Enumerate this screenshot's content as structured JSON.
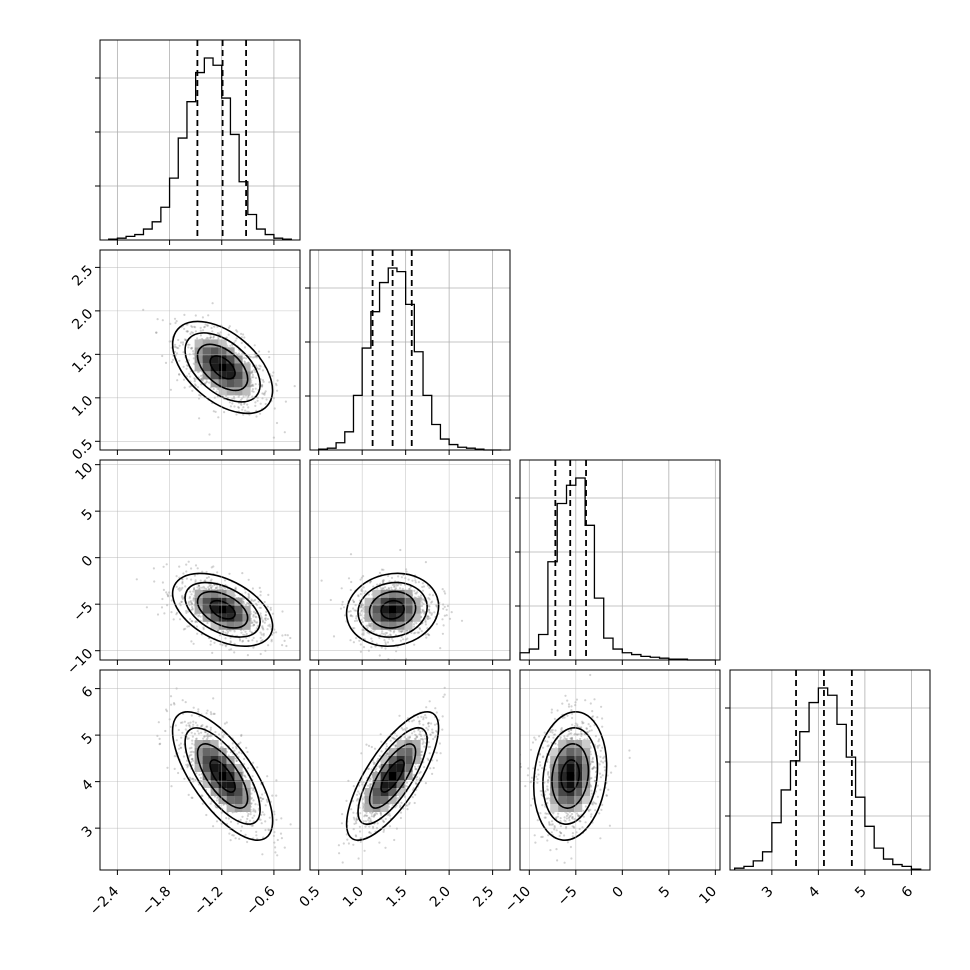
{
  "colors": {
    "line": "#000000",
    "grid": "#b0b0b0",
    "points": "#7f7f7f",
    "background": "#ffffff"
  },
  "chart_data": {
    "type": "corner",
    "grid": true,
    "parameters": [
      {
        "id": "p0",
        "range": [
          -2.6,
          -0.3
        ],
        "ticks": [
          -2.4,
          -1.8,
          -1.2,
          -0.6
        ],
        "tick_labels": [
          "−2.4",
          "−1.8",
          "−1.2",
          "−0.6"
        ],
        "quantiles": [
          -1.48,
          -1.19,
          -0.92
        ],
        "median": -1.19,
        "std": 0.25
      },
      {
        "id": "p1",
        "range": [
          0.4,
          2.7
        ],
        "ticks": [
          0.5,
          1.0,
          1.5,
          2.0,
          2.5
        ],
        "tick_labels": [
          "0.5",
          "1.0",
          "1.5",
          "2.0",
          "2.5"
        ],
        "quantiles": [
          1.12,
          1.35,
          1.57
        ],
        "median": 1.35,
        "std": 0.23
      },
      {
        "id": "p2",
        "range": [
          -11.0,
          10.5
        ],
        "ticks": [
          -10,
          -5,
          0,
          5,
          10
        ],
        "tick_labels": [
          "−10",
          "−5",
          "0",
          "5",
          "10"
        ],
        "quantiles": [
          -7.2,
          -5.6,
          -3.9
        ],
        "median": -5.6,
        "std": 1.7
      },
      {
        "id": "p3",
        "range": [
          2.1,
          6.4
        ],
        "ticks": [
          3,
          4,
          5,
          6
        ],
        "tick_labels": [
          "3",
          "4",
          "5",
          "6"
        ],
        "quantiles": [
          3.52,
          4.12,
          4.72
        ],
        "median": 4.12,
        "std": 0.6
      }
    ],
    "histograms": [
      {
        "param": "p0",
        "bin_edges": [
          -2.5,
          -2.4,
          -2.3,
          -2.2,
          -2.1,
          -2.0,
          -1.9,
          -1.8,
          -1.7,
          -1.6,
          -1.5,
          -1.4,
          -1.3,
          -1.2,
          -1.1,
          -1.0,
          -0.9,
          -0.8,
          -0.7,
          -0.6,
          -0.5,
          -0.4
        ],
        "counts": [
          0.005,
          0.01,
          0.02,
          0.03,
          0.06,
          0.1,
          0.18,
          0.34,
          0.56,
          0.76,
          0.92,
          1.0,
          0.96,
          0.78,
          0.58,
          0.32,
          0.14,
          0.06,
          0.03,
          0.01,
          0.005
        ]
      },
      {
        "param": "p1",
        "bin_edges": [
          0.5,
          0.6,
          0.7,
          0.8,
          0.9,
          1.0,
          1.1,
          1.2,
          1.3,
          1.4,
          1.5,
          1.6,
          1.7,
          1.8,
          1.9,
          2.0,
          2.1,
          2.2,
          2.3,
          2.4,
          2.5,
          2.6
        ],
        "counts": [
          0.005,
          0.01,
          0.04,
          0.1,
          0.3,
          0.56,
          0.76,
          0.92,
          1.0,
          0.98,
          0.8,
          0.54,
          0.3,
          0.14,
          0.06,
          0.03,
          0.015,
          0.01,
          0.005,
          0.0,
          0.0
        ]
      },
      {
        "param": "p2",
        "bin_edges": [
          -11,
          -10,
          -9,
          -8,
          -7,
          -6,
          -5,
          -4,
          -3,
          -2,
          -1,
          0,
          1,
          2,
          3,
          4,
          5,
          6,
          7,
          8,
          9,
          10
        ],
        "counts": [
          0.04,
          0.06,
          0.14,
          0.54,
          0.86,
          0.96,
          1.0,
          0.74,
          0.34,
          0.12,
          0.06,
          0.04,
          0.03,
          0.02,
          0.015,
          0.01,
          0.005,
          0.005,
          0.0,
          0.0,
          0.0
        ]
      },
      {
        "param": "p3",
        "bin_edges": [
          2.2,
          2.4,
          2.6,
          2.8,
          3.0,
          3.2,
          3.4,
          3.6,
          3.8,
          4.0,
          4.2,
          4.4,
          4.6,
          4.8,
          5.0,
          5.2,
          5.4,
          5.6,
          5.8,
          6.0,
          6.2
        ],
        "counts": [
          0.01,
          0.02,
          0.05,
          0.1,
          0.26,
          0.44,
          0.6,
          0.76,
          0.92,
          1.0,
          0.96,
          0.8,
          0.62,
          0.4,
          0.24,
          0.12,
          0.06,
          0.03,
          0.02,
          0.005
        ]
      }
    ],
    "scatter_panels": [
      {
        "x": "p0",
        "y": "p1",
        "rho": -0.5
      },
      {
        "x": "p0",
        "y": "p2",
        "rho": -0.45
      },
      {
        "x": "p1",
        "y": "p2",
        "rho": 0.1
      },
      {
        "x": "p0",
        "y": "p3",
        "rho": -0.7
      },
      {
        "x": "p1",
        "y": "p3",
        "rho": 0.75
      },
      {
        "x": "p2",
        "y": "p3",
        "rho": 0.15
      }
    ]
  }
}
